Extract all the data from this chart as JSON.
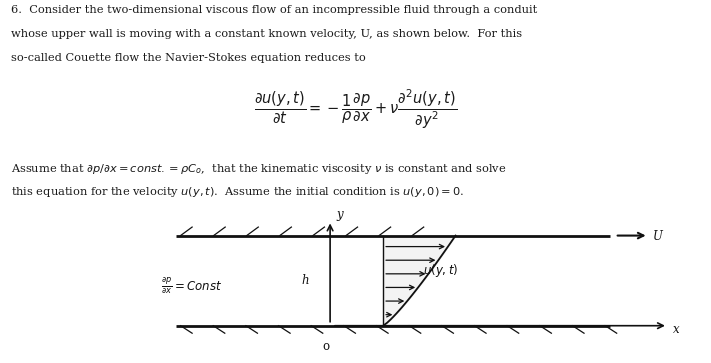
{
  "bg_color": "#ffffff",
  "text_color": "#1a1a1a",
  "line_color": "#111111",
  "title_line1": "6.  Consider the two-dimensional viscous flow of an incompressible fluid through a conduit",
  "title_line2": "whose upper wall is moving with a constant known velocity, U, as shown below.  For this",
  "title_line3": "so-called Couette flow the Navier-Stokes equation reduces to",
  "assume_line1": "Assume that $\\partial p/\\partial x = const. = \\rho C_o$,  that the kinematic viscosity $\\nu$ is constant and solve",
  "assume_line2": "this equation for the velocity $u(y, t)$.  Assume the initial condition is $u(y, 0) = 0$.",
  "diagram_dp_label": "$\\frac{\\partial p}{\\partial x} = Const$",
  "diagram_u_label": "U",
  "diagram_y_label": "y",
  "diagram_x_label": "x",
  "diagram_h_label": "h",
  "diagram_o_label": "o",
  "diagram_vel_label": "$u(y, t)$",
  "fs_body": 8.2,
  "fs_eq": 10.5,
  "fs_diag": 8.5
}
